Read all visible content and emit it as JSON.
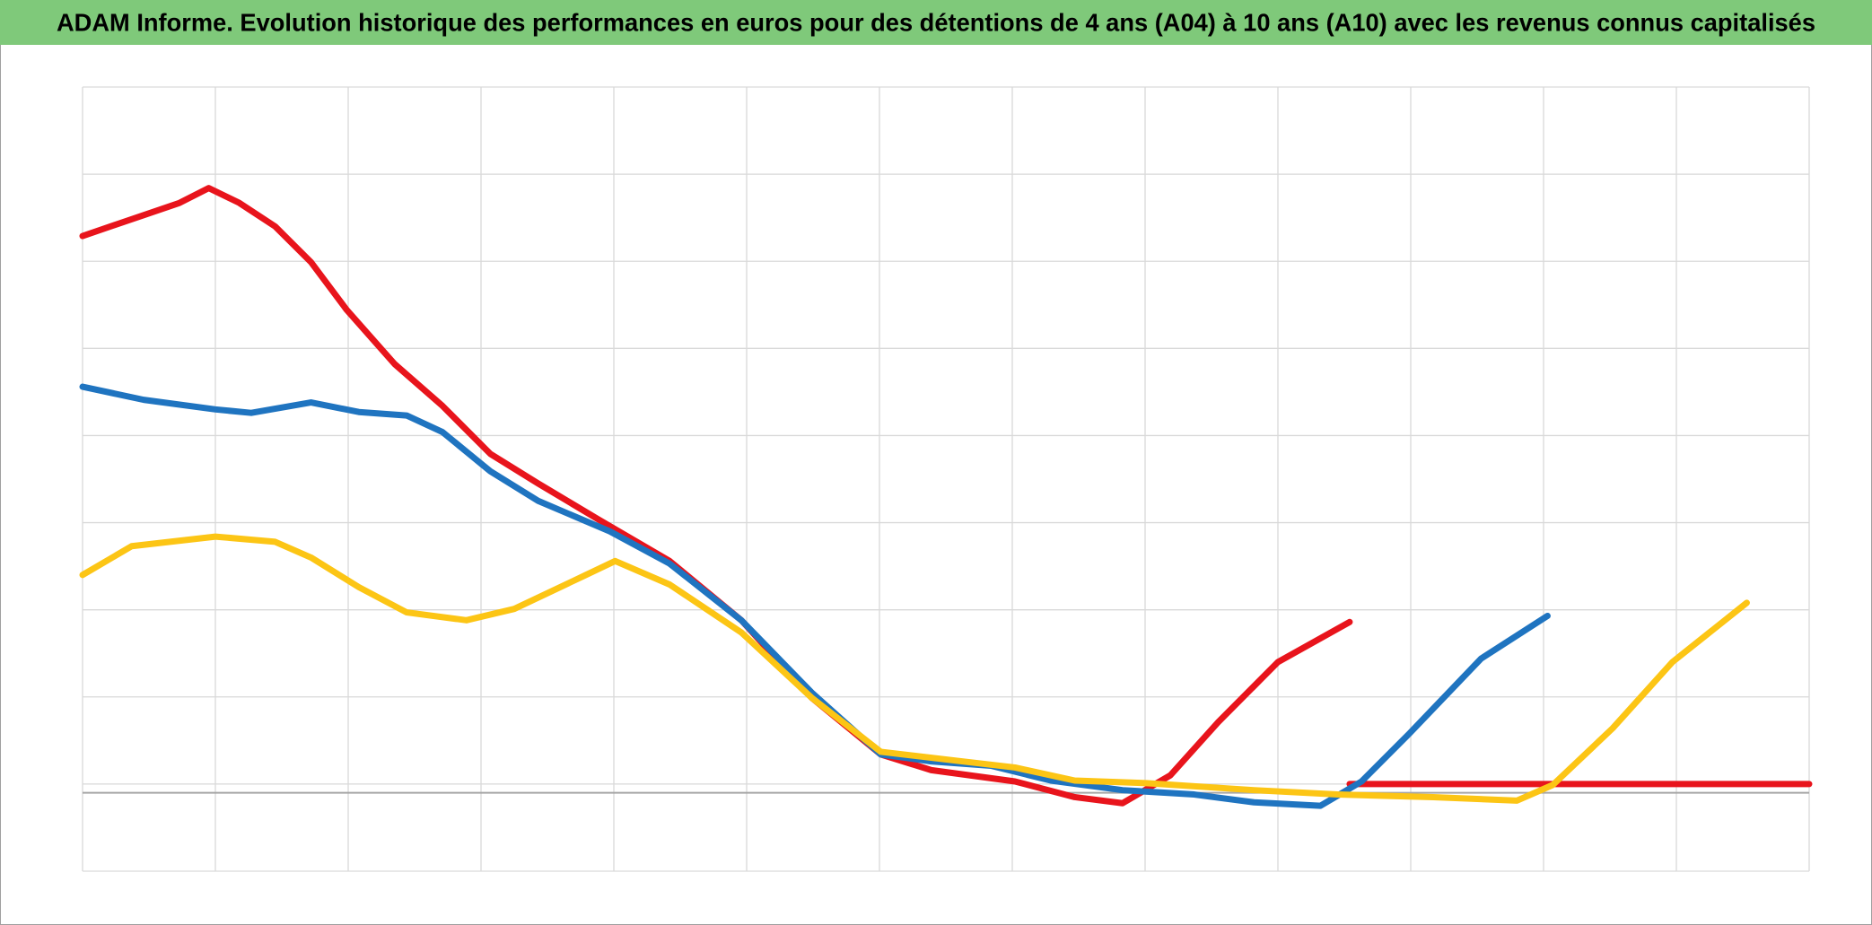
{
  "chart_data": {
    "type": "line",
    "title": "ADAM Informe. Evolution historique des performances en euros pour des détentions de 4 ans (A04) à 10 ans (A10) avec les revenus connus capitalisés",
    "xlim": [
      0,
      13
    ],
    "xticks": [
      0,
      1,
      2,
      3,
      4,
      5,
      6,
      7,
      8,
      9,
      10,
      11,
      12,
      13
    ],
    "ylim": [
      0,
      9
    ],
    "yticks": [
      0,
      1,
      2,
      3,
      4,
      5,
      6,
      7,
      8,
      9
    ],
    "baseline": 0.9,
    "grid": true,
    "series": [
      {
        "color": "#e8141c",
        "x": [
          0,
          0.46,
          0.73,
          0.95,
          1.18,
          1.45,
          1.72,
          1.99,
          2.35,
          2.71,
          3.07,
          3.43,
          3.88,
          4.42,
          4.96,
          5.49,
          6.01,
          6.39,
          7.02,
          7.47,
          7.83,
          8.19,
          8.55,
          9.0,
          9.54
        ],
        "values": [
          7.29,
          7.53,
          7.67,
          7.84,
          7.67,
          7.4,
          6.99,
          6.44,
          5.82,
          5.34,
          4.79,
          4.45,
          4.04,
          3.56,
          2.88,
          1.99,
          1.34,
          1.16,
          1.03,
          0.85,
          0.78,
          1.1,
          1.71,
          2.4,
          2.86
        ]
      },
      {
        "color": "#e8141c",
        "x": [
          9.54,
          13
        ],
        "values": [
          1.0,
          1.0
        ]
      },
      {
        "color": "#1f74c0",
        "x": [
          0,
          0.46,
          1.0,
          1.27,
          1.72,
          2.08,
          2.44,
          2.71,
          3.07,
          3.43,
          3.97,
          4.42,
          4.96,
          5.49,
          6.01,
          6.39,
          6.84,
          7.29,
          7.83,
          8.37,
          8.82,
          9.32,
          9.63,
          9.99,
          10.53,
          11.03
        ],
        "values": [
          5.56,
          5.41,
          5.3,
          5.26,
          5.38,
          5.27,
          5.23,
          5.04,
          4.59,
          4.25,
          3.9,
          3.53,
          2.88,
          2.05,
          1.34,
          1.26,
          1.21,
          1.04,
          0.93,
          0.88,
          0.79,
          0.75,
          1.03,
          1.58,
          2.44,
          2.93
        ]
      },
      {
        "color": "#fcc515",
        "x": [
          0,
          0.37,
          1.0,
          1.45,
          1.72,
          2.08,
          2.44,
          2.89,
          3.25,
          3.79,
          4.01,
          4.42,
          4.96,
          5.49,
          6.01,
          6.57,
          7.02,
          7.47,
          8.01,
          8.82,
          9.45,
          10.17,
          10.8,
          11.07,
          11.52,
          11.97,
          12.53
        ],
        "values": [
          3.4,
          3.73,
          3.84,
          3.78,
          3.6,
          3.26,
          2.97,
          2.88,
          3.01,
          3.4,
          3.56,
          3.29,
          2.74,
          1.99,
          1.37,
          1.27,
          1.19,
          1.04,
          1.01,
          0.93,
          0.88,
          0.85,
          0.81,
          0.99,
          1.64,
          2.4,
          3.08
        ]
      }
    ]
  }
}
